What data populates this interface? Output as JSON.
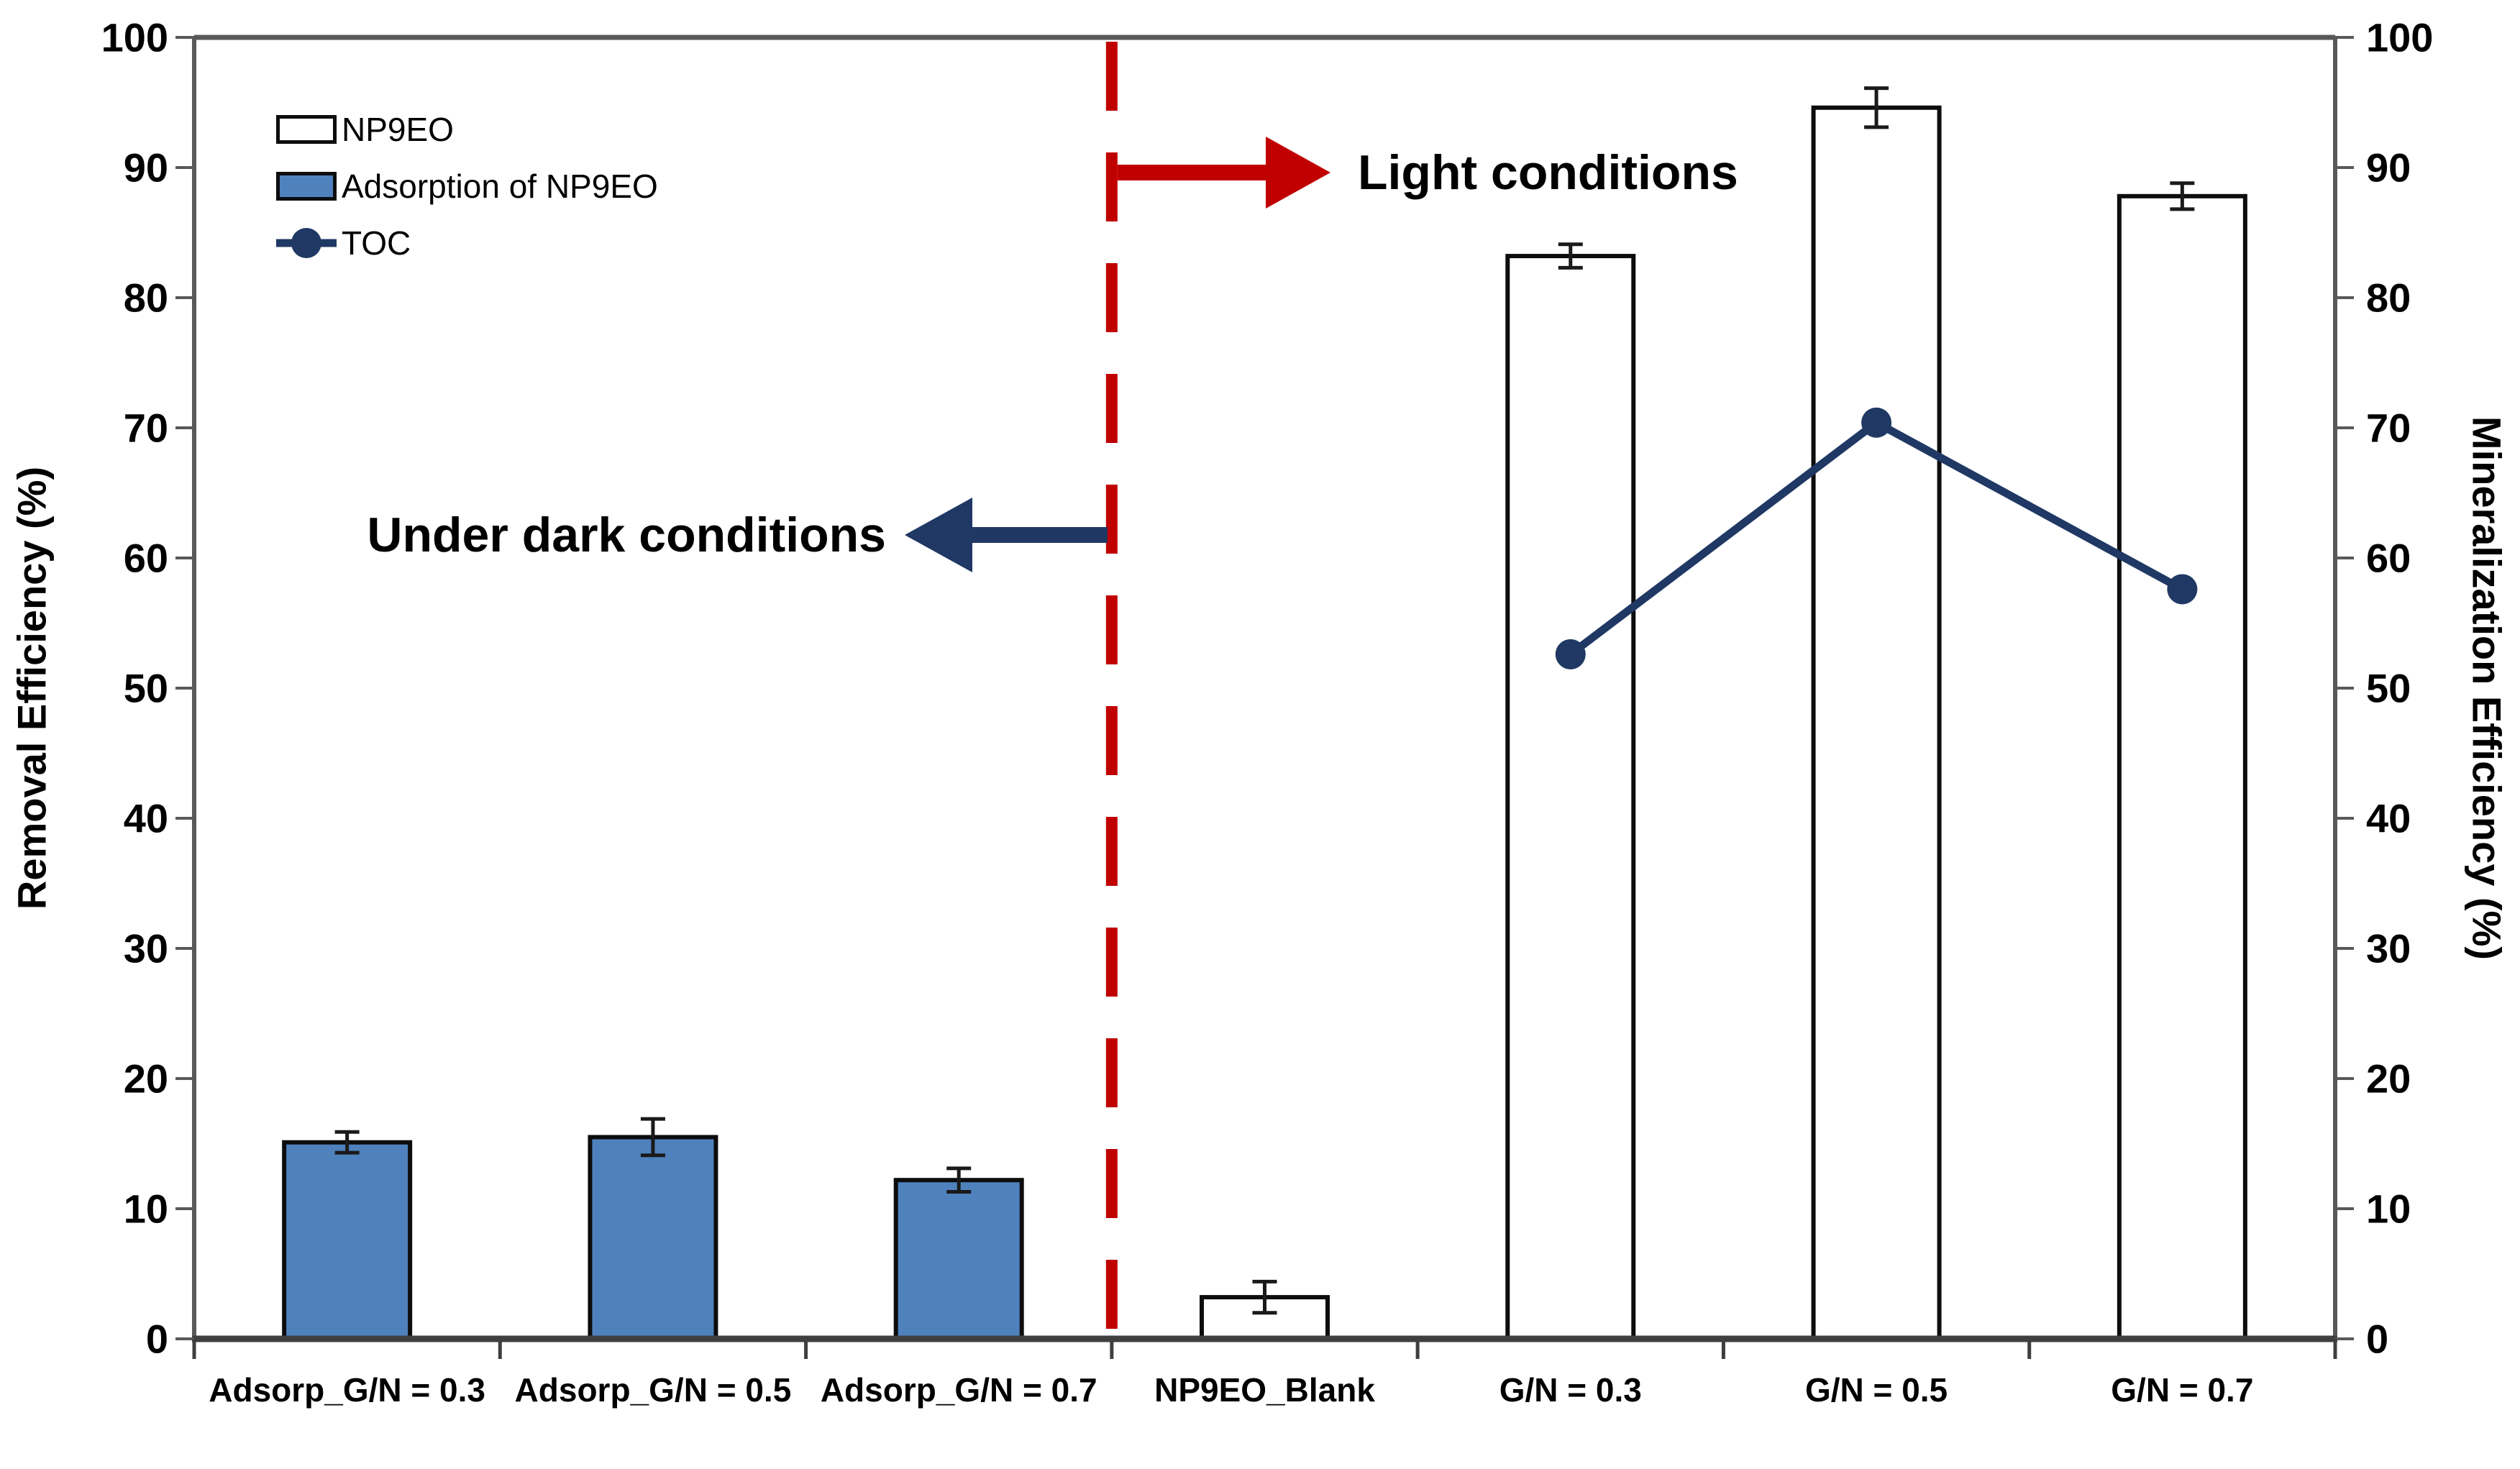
{
  "chart_data": {
    "type": "bar",
    "categories": [
      "Adsorp_G/N = 0.3",
      "Adsorp_G/N = 0.5",
      "Adsorp_G/N = 0.7",
      "NP9EO_Blank",
      "G/N = 0.3",
      "G/N = 0.5",
      "G/N = 0.7"
    ],
    "bar_series": [
      {
        "name": "NP9EO",
        "style": "white",
        "values": [
          null,
          null,
          null,
          3.2,
          83.2,
          94.6,
          87.8
        ],
        "errors": [
          null,
          null,
          null,
          1.2,
          0.9,
          1.5,
          1.0
        ]
      },
      {
        "name": "Adsorption of NP9EO",
        "style": "blue",
        "values": [
          15.1,
          15.5,
          12.2,
          null,
          null,
          null,
          null
        ],
        "errors": [
          0.8,
          1.4,
          0.9,
          null,
          null,
          null,
          null
        ]
      }
    ],
    "line_series": {
      "name": "TOC",
      "x_categories": [
        "G/N = 0.3",
        "G/N = 0.5",
        "G/N = 0.7"
      ],
      "values": [
        52.6,
        70.4,
        57.6
      ]
    },
    "left_axis": {
      "label": "Removal Efficiency (%)",
      "min": 0,
      "max": 100,
      "step": 10,
      "ticks": [
        "0",
        "10",
        "20",
        "30",
        "40",
        "50",
        "60",
        "70",
        "80",
        "90",
        "100"
      ]
    },
    "right_axis": {
      "label": "Mineralization Efficiency (%)",
      "min": 0,
      "max": 100,
      "step": 10,
      "ticks": [
        "0",
        "10",
        "20",
        "30",
        "40",
        "50",
        "60",
        "70",
        "80",
        "90",
        "100"
      ]
    },
    "annotations": {
      "dark": {
        "text": "Under dark conditions",
        "arrow_direction": "left",
        "arrow_color": "#1F3864"
      },
      "light": {
        "text": "Light conditions",
        "arrow_direction": "right",
        "arrow_color": "#C00000"
      }
    },
    "divider": {
      "style": "dashed",
      "color": "#C00000",
      "after_category": "Adsorp_G/N = 0.7"
    },
    "legend_position": "top-left-inside",
    "grid": "off"
  },
  "colors": {
    "bar_blue": "#4F81BD",
    "bar_white": "#FFFFFF",
    "bar_border": "#0d0d0d",
    "toc_navy": "#1F3864",
    "red": "#C00000",
    "axis": "#595959",
    "axis_bottom": "#3f3f3f",
    "error_bar": "#1a1a1a",
    "text": "#000000"
  }
}
